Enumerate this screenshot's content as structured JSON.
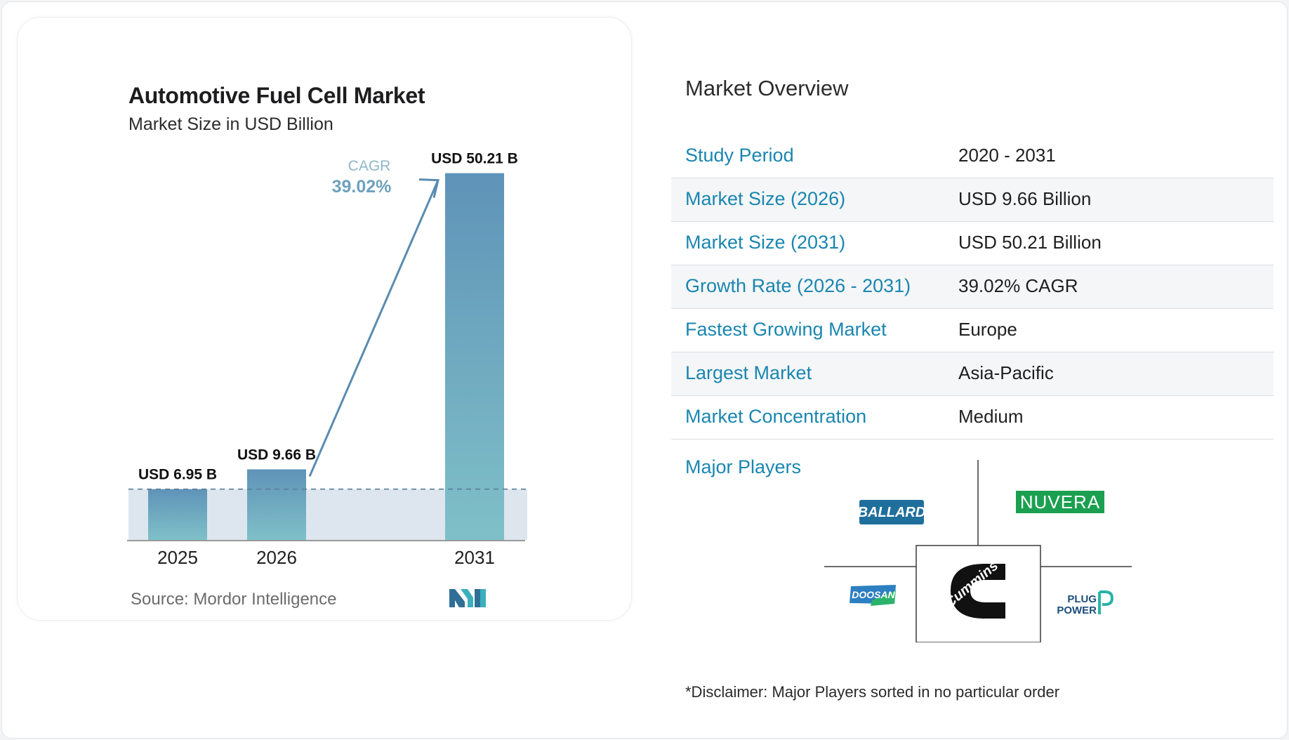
{
  "chart_data": {
    "type": "bar",
    "title": "Automotive Fuel Cell Market",
    "subtitle": "Market Size in USD Billion",
    "categories": [
      "2025",
      "2026",
      "2031"
    ],
    "values": [
      6.95,
      9.66,
      50.21
    ],
    "data_labels": [
      "USD 6.95 B",
      "USD 9.66 B",
      "USD 50.21 B"
    ],
    "ylim": [
      0,
      52
    ],
    "annotation": {
      "label": "CAGR",
      "value": "39.02%"
    },
    "reference_line": 6.95,
    "grid": false,
    "colors": {
      "bar_top": "#5f93b8",
      "bar_bottom": "#7fc0c8",
      "arrow": "#5a8bb0",
      "band": "#dde6ee"
    }
  },
  "source": "Source: Mordor Intelligence",
  "overview": {
    "title": "Market Overview",
    "rows": [
      {
        "label": "Study Period",
        "value": "2020 - 2031"
      },
      {
        "label": "Market Size (2026)",
        "value": "USD 9.66 Billion"
      },
      {
        "label": "Market Size (2031)",
        "value": "USD 50.21 Billion"
      },
      {
        "label": "Growth Rate (2026 - 2031)",
        "value": "39.02% CAGR"
      },
      {
        "label": "Fastest Growing Market",
        "value": "Europe"
      },
      {
        "label": "Largest Market",
        "value": "Asia-Pacific"
      },
      {
        "label": "Market Concentration",
        "value": "Medium"
      }
    ]
  },
  "players": {
    "label": "Major Players",
    "logos": [
      "BALLARD",
      "NUVERA",
      "Cummins",
      "DOOSAN",
      "PLUG",
      "POWER"
    ]
  },
  "disclaimer": "*Disclaimer: Major Players sorted in no particular order",
  "accent": "#1a86b0"
}
